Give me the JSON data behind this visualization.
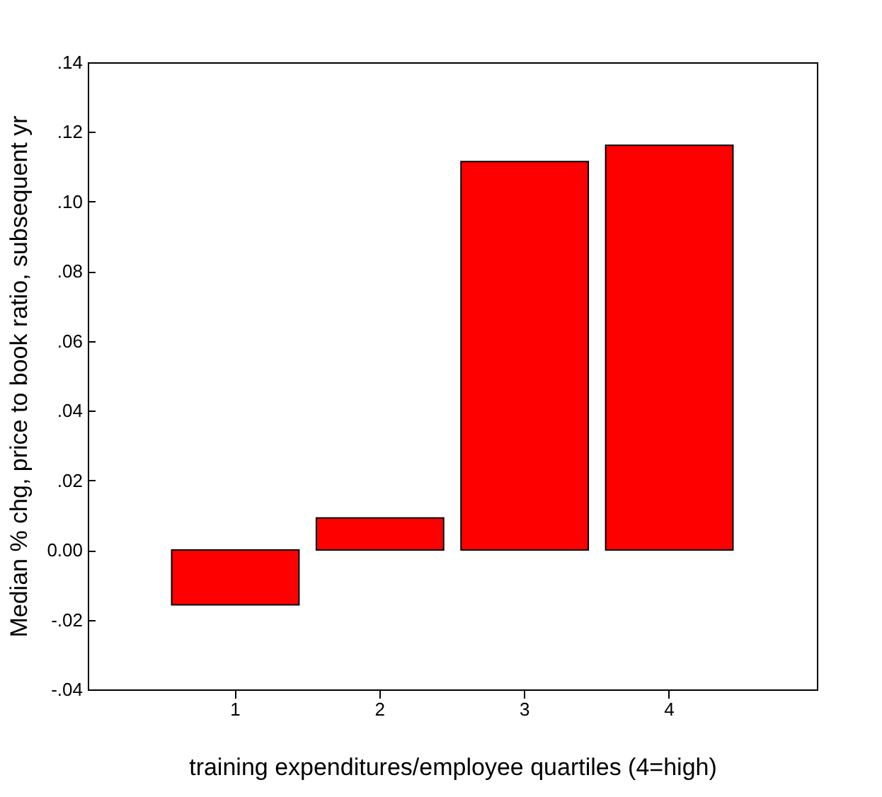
{
  "chart_data": {
    "type": "bar",
    "xlabel": "training expenditures/employee quartiles (4=high)",
    "ylabel": "Median % chg, price to book ratio, subsequent yr",
    "categories": [
      "1",
      "2",
      "3",
      "4"
    ],
    "values": [
      -0.0157,
      0.0092,
      0.1115,
      0.1162
    ],
    "color": "#ff0000",
    "ylim": [
      -0.04,
      0.14
    ],
    "yticks": [
      {
        "value": -0.04,
        "label": "-.04"
      },
      {
        "value": -0.02,
        "label": "-.02"
      },
      {
        "value": 0,
        "label": "0.00"
      },
      {
        "value": 0.02,
        "label": ".02"
      },
      {
        "value": 0.04,
        "label": ".04"
      },
      {
        "value": 0.06,
        "label": ".06"
      },
      {
        "value": 0.08,
        "label": ".08"
      },
      {
        "value": 0.1,
        "label": ".10"
      },
      {
        "value": 0.12,
        "label": ".12"
      },
      {
        "value": 0.14,
        "label": ".14"
      }
    ],
    "grid": false
  }
}
